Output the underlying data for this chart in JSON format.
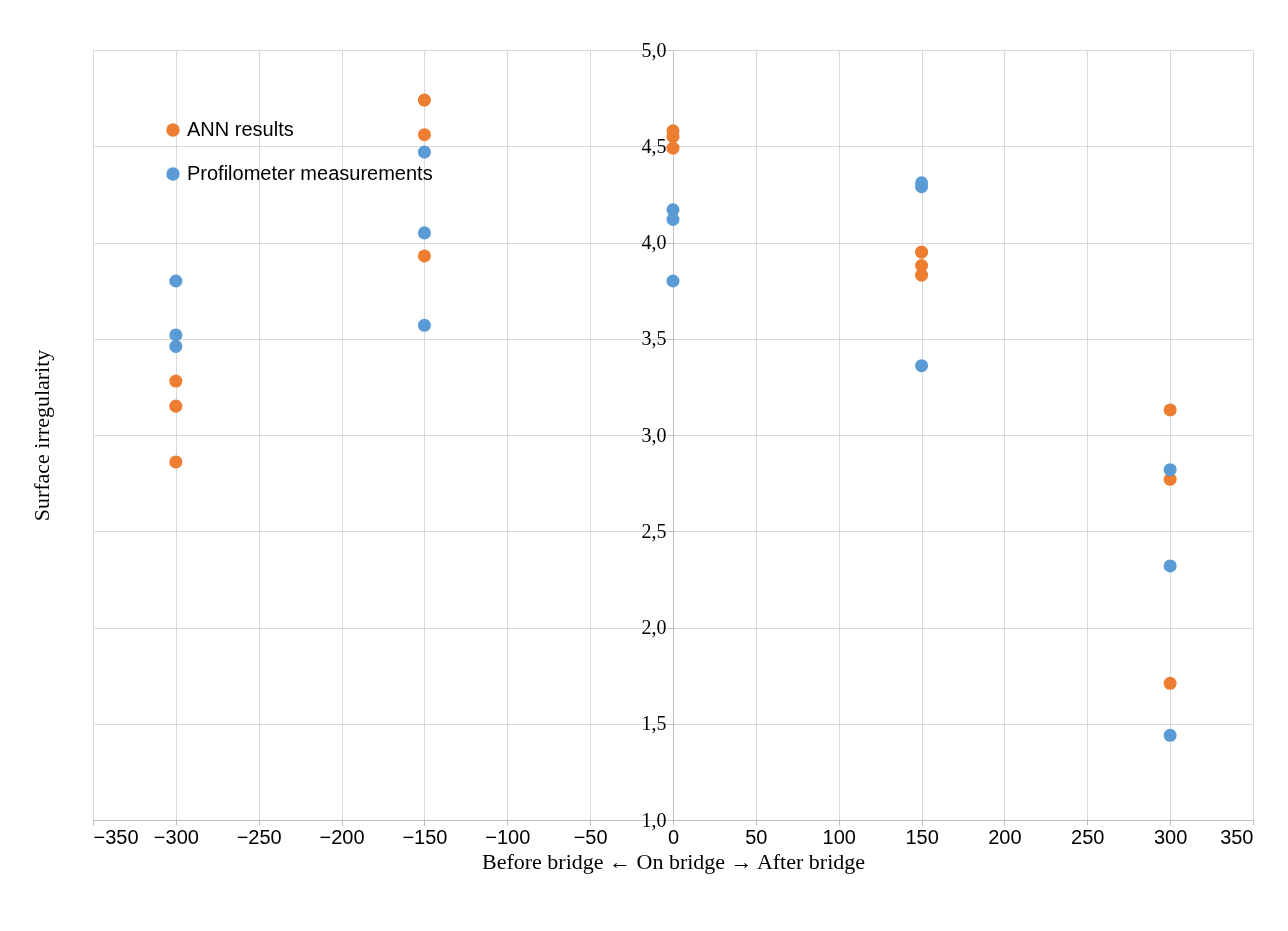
{
  "chart_data": {
    "type": "scatter",
    "xlabel": "Before bridge ← On bridge → After bridge",
    "ylabel": "Surface irregularity",
    "xlim": [
      -350,
      350
    ],
    "xticks": [
      -350,
      -300,
      -250,
      -200,
      -150,
      -100,
      -50,
      0,
      50,
      100,
      150,
      200,
      250,
      300,
      350
    ],
    "ylim": [
      1.0,
      5.0
    ],
    "yticks": [
      {
        "value": 1.0,
        "label": "1,0"
      },
      {
        "value": 1.5,
        "label": "1,5"
      },
      {
        "value": 2.0,
        "label": "2,0"
      },
      {
        "value": 2.5,
        "label": "2,5"
      },
      {
        "value": 3.0,
        "label": "3,0"
      },
      {
        "value": 3.5,
        "label": "3,5"
      },
      {
        "value": 4.0,
        "label": "4,0"
      },
      {
        "value": 4.5,
        "label": "4,5"
      },
      {
        "value": 5.0,
        "label": "5,0"
      }
    ],
    "grid": true,
    "legend": "top left",
    "marker": "circle",
    "series": [
      {
        "name": "ANN results",
        "color": "#ed7d31",
        "x": [
          -300,
          -300,
          -300,
          -150,
          -150,
          -150,
          0,
          0,
          0,
          150,
          150,
          150,
          300,
          300,
          300
        ],
        "values": [
          3.28,
          3.15,
          2.86,
          4.74,
          4.56,
          3.93,
          4.58,
          4.55,
          4.49,
          3.95,
          3.88,
          3.83,
          3.13,
          2.77,
          1.71
        ]
      },
      {
        "name": "Profilometer measurements",
        "color": "#5b9bd5",
        "x": [
          -300,
          -300,
          -300,
          -150,
          -150,
          -150,
          0,
          0,
          0,
          150,
          150,
          150,
          300,
          300,
          300
        ],
        "values": [
          3.8,
          3.52,
          3.46,
          4.47,
          4.05,
          3.57,
          4.17,
          4.12,
          3.8,
          4.31,
          4.29,
          3.36,
          2.82,
          2.32,
          1.44
        ]
      }
    ]
  }
}
